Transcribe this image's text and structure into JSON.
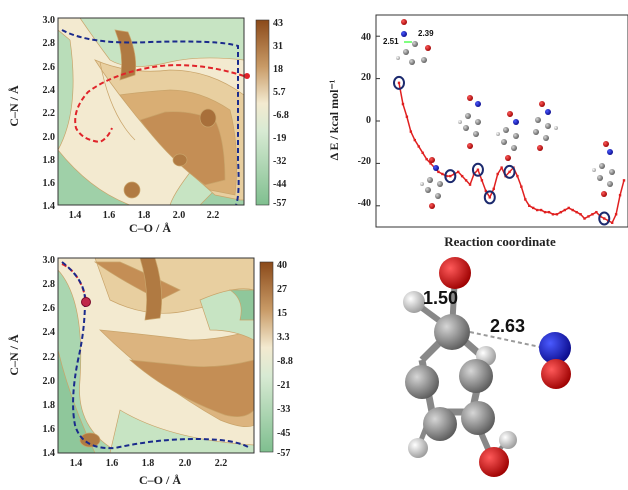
{
  "colors": {
    "high": "#8b4a1a",
    "mid": "#f1e6c4",
    "low": "#8fc79b",
    "curve": "#e02020",
    "path_red": "#e0242a",
    "path_blue": "#1a2a8c",
    "marker": "#1c2a6e"
  },
  "chart_data": [
    {
      "type": "heatmap",
      "xlabel": "C–O / Å",
      "ylabel": "C–N / Å",
      "xticks": [
        "1.4",
        "1.6",
        "1.8",
        "2.0",
        "2.2"
      ],
      "yticks": [
        "3.0",
        "2.8",
        "2.6",
        "2.4",
        "2.2",
        "2.0",
        "1.8",
        "1.6",
        "1.4"
      ],
      "xlim": [
        1.3,
        2.38
      ],
      "ylim": [
        1.4,
        3.0
      ],
      "colorbar": [
        "43",
        "31",
        "18",
        "5.7",
        "-6.8",
        "-19",
        "-32",
        "-44",
        "-57"
      ],
      "colorbar_range": [
        -57,
        43
      ]
    },
    {
      "type": "line",
      "xlabel": "Reaction coordinate",
      "ylabel": "Δ E / kcal mol⁻¹",
      "yticks": [
        "40",
        "20",
        "0",
        "-20",
        "-40"
      ],
      "ylim": [
        -50,
        50
      ],
      "annotations": [
        "2.51",
        "2.39"
      ],
      "values": [
        18,
        8,
        2,
        -5,
        -9,
        -12,
        -15,
        -18,
        -20,
        -22,
        -24,
        -25,
        -26,
        -26,
        -25,
        -24,
        -26,
        -28,
        -30,
        -25,
        -23,
        -28,
        -33,
        -36,
        -32,
        -25,
        -22,
        -26,
        -24,
        -22,
        -26,
        -31,
        -37,
        -40,
        -41,
        -42,
        -42,
        -43,
        -43,
        -44,
        -44,
        -43,
        -42,
        -41,
        -42,
        -43,
        -44,
        -46,
        -45,
        -44,
        -43,
        -45,
        -46,
        -47,
        -48,
        -44,
        -35,
        -28
      ],
      "circled_points": [
        0,
        13,
        20,
        23,
        28,
        52
      ]
    },
    {
      "type": "heatmap",
      "xlabel": "C–O / Å",
      "ylabel": "C–N / Å",
      "xticks": [
        "1.4",
        "1.6",
        "1.8",
        "2.0",
        "2.2"
      ],
      "yticks": [
        "3.0",
        "2.8",
        "2.6",
        "2.4",
        "2.2",
        "2.0",
        "1.8",
        "1.6",
        "1.4"
      ],
      "xlim": [
        1.3,
        2.38
      ],
      "ylim": [
        1.4,
        3.0
      ],
      "colorbar": [
        "40",
        "27",
        "15",
        "3.3",
        "-8.8",
        "-21",
        "-33",
        "-45",
        "-57"
      ],
      "colorbar_range": [
        -57,
        40
      ]
    }
  ],
  "molecule": {
    "bond_labels": [
      "1.50",
      "2.63"
    ]
  }
}
